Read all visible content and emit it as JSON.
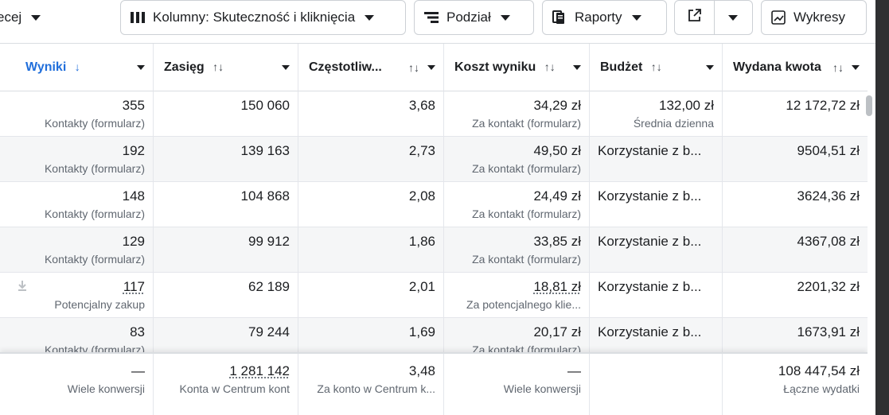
{
  "toolbar": {
    "partial_label": "ecej",
    "columns_label": "Kolumny: Skuteczność i kliknięcia",
    "breakdown_label": "Podział",
    "reports_label": "Raporty",
    "charts_label": "Wykresy",
    "icons": {
      "columns": "columns-icon",
      "breakdown": "breakdown-icon",
      "reports": "reports-icon",
      "export": "external-link-icon",
      "charts": "line-chart-icon"
    }
  },
  "columns": [
    {
      "label": "Wyniki",
      "sort": "↓",
      "active": true
    },
    {
      "label": "Zasięg",
      "sort": "↑↓"
    },
    {
      "label": "Częstotliw...",
      "sort": "↑↓"
    },
    {
      "label": "Koszt wyniku",
      "sort": "↑↓"
    },
    {
      "label": "Budżet",
      "sort": "↑↓"
    },
    {
      "label": "Wydana kwota",
      "sort": "↑↓"
    }
  ],
  "rows": [
    {
      "wyniki": "355",
      "wyniki_sub": "Kontakty (formularz)",
      "zasieg": "150 060",
      "czest": "3,68",
      "koszt": "34,29 zł",
      "koszt_sub": "Za kontakt (formularz)",
      "budzet": "132,00 zł",
      "budzet_sub": "Średnia dzienna",
      "kwota": "12 172,72 zł"
    },
    {
      "wyniki": "192",
      "wyniki_sub": "Kontakty (formularz)",
      "zasieg": "139 163",
      "czest": "2,73",
      "koszt": "49,50 zł",
      "koszt_sub": "Za kontakt (formularz)",
      "budzet": "Korzystanie z b...",
      "budzet_sub": "",
      "kwota": "9504,51 zł"
    },
    {
      "wyniki": "148",
      "wyniki_sub": "Kontakty (formularz)",
      "zasieg": "104 868",
      "czest": "2,08",
      "koszt": "24,49 zł",
      "koszt_sub": "Za kontakt (formularz)",
      "budzet": "Korzystanie z b...",
      "budzet_sub": "",
      "kwota": "3624,36 zł"
    },
    {
      "wyniki": "129",
      "wyniki_sub": "Kontakty (formularz)",
      "zasieg": "99 912",
      "czest": "1,86",
      "koszt": "33,85 zł",
      "koszt_sub": "Za kontakt (formularz)",
      "budzet": "Korzystanie z b...",
      "budzet_sub": "",
      "kwota": "4367,08 zł"
    },
    {
      "wyniki": "117",
      "wyniki_sub": "Potencjalny zakup",
      "zasieg": "62 189",
      "czest": "2,01",
      "koszt": "18,81 zł",
      "koszt_sub": "Za potencjalnego klie...",
      "budzet": "Korzystanie z b...",
      "budzet_sub": "",
      "kwota": "2201,32 zł"
    },
    {
      "wyniki": "83",
      "wyniki_sub": "Kontakty (formularz)",
      "zasieg": "79 244",
      "czest": "1,69",
      "koszt": "20,17 zł",
      "koszt_sub": "Za kontakt (formularz)",
      "budzet": "Korzystanie z b...",
      "budzet_sub": "",
      "kwota": "1673,91 zł"
    }
  ],
  "totals": {
    "wyniki": "—",
    "wyniki_sub": "Wiele konwersji",
    "zasieg": "1 281 142",
    "zasieg_sub": "Konta w Centrum kont",
    "czest": "3,48",
    "czest_sub": "Za konto w Centrum k...",
    "koszt": "—",
    "koszt_sub": "Wiele konwersji",
    "kwota": "108 447,54 zł",
    "kwota_sub": "Łączne wydatki"
  }
}
